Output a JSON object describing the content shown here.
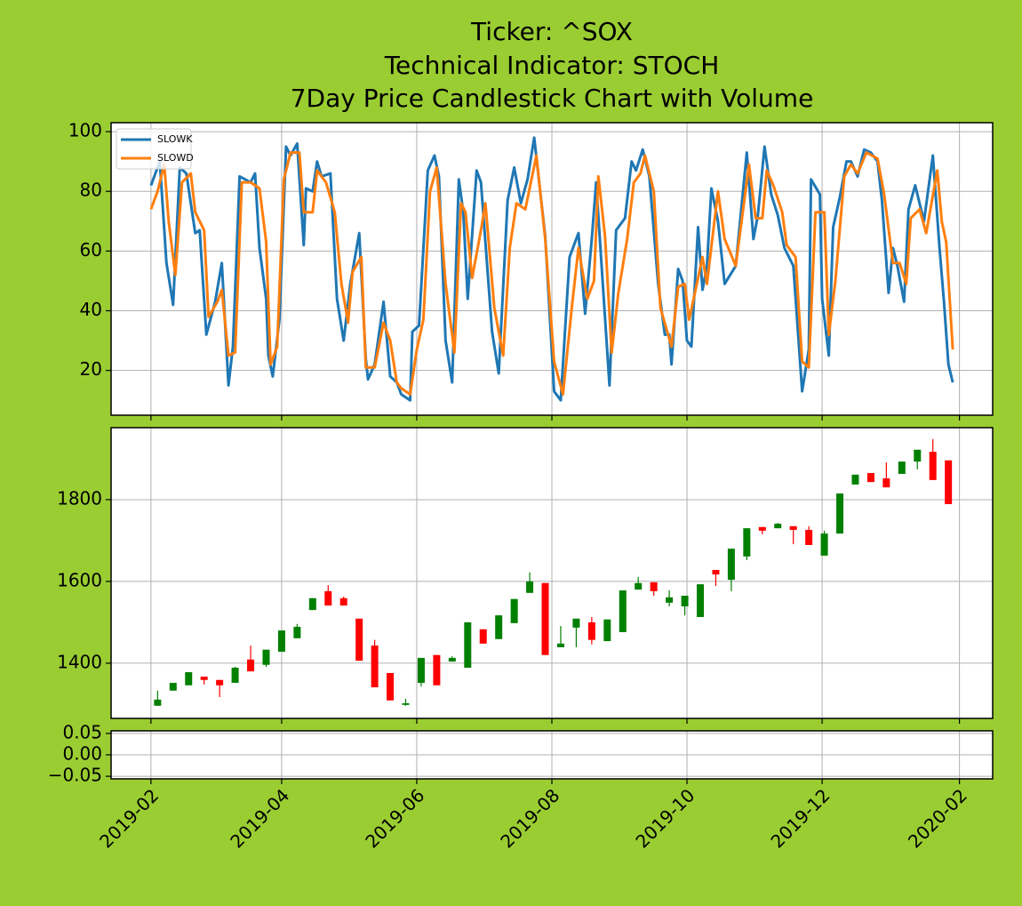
{
  "title": [
    "Ticker: ^SOX",
    "Technical Indicator: STOCH",
    "7Day Price Candlestick Chart with Volume"
  ],
  "chart_data": [
    {
      "type": "line",
      "ylim": [
        5,
        103
      ],
      "yticks": [
        20,
        40,
        60,
        80,
        100
      ],
      "grid": true,
      "legend": "upper left",
      "series": [
        {
          "name": "SLOWK",
          "color": "#1f77b4",
          "x": [
            "2019-02-01",
            "2019-02-05",
            "2019-02-08",
            "2019-02-11",
            "2019-02-14",
            "2019-02-17",
            "2019-02-21",
            "2019-02-23",
            "2019-02-26",
            "2019-03-02",
            "2019-03-05",
            "2019-03-08",
            "2019-03-10",
            "2019-03-13",
            "2019-03-18",
            "2019-03-20",
            "2019-03-22",
            "2019-03-25",
            "2019-03-26",
            "2019-03-28",
            "2019-03-31",
            "2019-04-03",
            "2019-04-05",
            "2019-04-08",
            "2019-04-11",
            "2019-04-12",
            "2019-04-15",
            "2019-04-17",
            "2019-04-19",
            "2019-04-23",
            "2019-04-26",
            "2019-04-29",
            "2019-05-02",
            "2019-05-06",
            "2019-05-09",
            "2019-05-10",
            "2019-05-13",
            "2019-05-17",
            "2019-05-20",
            "2019-05-23",
            "2019-05-25",
            "2019-05-29",
            "2019-05-30",
            "2019-06-02",
            "2019-06-06",
            "2019-06-09",
            "2019-06-11",
            "2019-06-14",
            "2019-06-17",
            "2019-06-20",
            "2019-06-22",
            "2019-06-24",
            "2019-06-28",
            "2019-06-30",
            "2019-07-05",
            "2019-07-08",
            "2019-07-12",
            "2019-07-15",
            "2019-07-18",
            "2019-07-21",
            "2019-07-24",
            "2019-07-29",
            "2019-08-02",
            "2019-08-05",
            "2019-08-09",
            "2019-08-13",
            "2019-08-16",
            "2019-08-19",
            "2019-08-21",
            "2019-08-24",
            "2019-08-27",
            "2019-08-30",
            "2019-09-03",
            "2019-09-06",
            "2019-09-08",
            "2019-09-11",
            "2019-09-14",
            "2019-09-18",
            "2019-09-21",
            "2019-09-23",
            "2019-09-24",
            "2019-09-27",
            "2019-09-29",
            "2019-10-01",
            "2019-10-03",
            "2019-10-06",
            "2019-10-08",
            "2019-10-10",
            "2019-10-12",
            "2019-10-15",
            "2019-10-18",
            "2019-10-23",
            "2019-10-28",
            "2019-10-31",
            "2019-11-02",
            "2019-11-05",
            "2019-11-08",
            "2019-11-11",
            "2019-11-14",
            "2019-11-18",
            "2019-11-22",
            "2019-11-25",
            "2019-11-26",
            "2019-11-30",
            "2019-12-01",
            "2019-12-04",
            "2019-12-06",
            "2019-12-09",
            "2019-12-12",
            "2019-12-14",
            "2019-12-17",
            "2019-12-20",
            "2019-12-23",
            "2019-12-26",
            "2019-12-28",
            "2019-12-31",
            "2020-01-02",
            "2020-01-04",
            "2020-01-07",
            "2020-01-09",
            "2020-01-12",
            "2020-01-16",
            "2020-01-20",
            "2020-01-23",
            "2020-01-25",
            "2020-01-27",
            "2020-01-29"
          ],
          "values": [
            82,
            90,
            56,
            42,
            88,
            86,
            66,
            67,
            32,
            43,
            56,
            15,
            28,
            85,
            83,
            86,
            61,
            44,
            25,
            18,
            37,
            95,
            92,
            96,
            62,
            81,
            80,
            90,
            85,
            86,
            44,
            30,
            49,
            66,
            24,
            17,
            22,
            43,
            18,
            16,
            12,
            10,
            33,
            35,
            87,
            92,
            85,
            30,
            16,
            84,
            73,
            44,
            87,
            83,
            33,
            19,
            77,
            88,
            76,
            84,
            98,
            65,
            13,
            10,
            58,
            66,
            39,
            64,
            83,
            49,
            15,
            67,
            71,
            90,
            87,
            94,
            85,
            49,
            32,
            32,
            22,
            54,
            50,
            30,
            28,
            68,
            47,
            55,
            81,
            70,
            49,
            55,
            93,
            64,
            72,
            95,
            79,
            72,
            61,
            55,
            13,
            27,
            84,
            79,
            44,
            25,
            68,
            78,
            90,
            90,
            85,
            94,
            93,
            90,
            77,
            46,
            61,
            55,
            43,
            74,
            82,
            70,
            92,
            61,
            43,
            22,
            16
          ]
        },
        {
          "name": "SLOWD",
          "color": "#ff7f0e",
          "x": [
            "2019-02-01",
            "2019-02-04",
            "2019-02-07",
            "2019-02-09",
            "2019-02-12",
            "2019-02-15",
            "2019-02-19",
            "2019-02-21",
            "2019-02-25",
            "2019-02-27",
            "2019-03-03",
            "2019-03-05",
            "2019-03-08",
            "2019-03-11",
            "2019-03-14",
            "2019-03-18",
            "2019-03-22",
            "2019-03-25",
            "2019-03-27",
            "2019-03-30",
            "2019-04-02",
            "2019-04-05",
            "2019-04-09",
            "2019-04-11",
            "2019-04-15",
            "2019-04-17",
            "2019-04-21",
            "2019-04-25",
            "2019-04-28",
            "2019-05-01",
            "2019-05-03",
            "2019-05-07",
            "2019-05-09",
            "2019-05-13",
            "2019-05-17",
            "2019-05-20",
            "2019-05-23",
            "2019-05-25",
            "2019-05-29",
            "2019-06-01",
            "2019-06-04",
            "2019-06-07",
            "2019-06-10",
            "2019-06-14",
            "2019-06-18",
            "2019-06-21",
            "2019-06-23",
            "2019-06-26",
            "2019-06-30",
            "2019-07-02",
            "2019-07-06",
            "2019-07-10",
            "2019-07-13",
            "2019-07-16",
            "2019-07-20",
            "2019-07-25",
            "2019-07-29",
            "2019-08-02",
            "2019-08-06",
            "2019-08-10",
            "2019-08-13",
            "2019-08-17",
            "2019-08-20",
            "2019-08-22",
            "2019-08-25",
            "2019-08-28",
            "2019-08-31",
            "2019-09-04",
            "2019-09-07",
            "2019-09-10",
            "2019-09-12",
            "2019-09-16",
            "2019-09-19",
            "2019-09-24",
            "2019-09-27",
            "2019-09-30",
            "2019-10-02",
            "2019-10-08",
            "2019-10-10",
            "2019-10-15",
            "2019-10-18",
            "2019-10-23",
            "2019-10-29",
            "2019-11-01",
            "2019-11-04",
            "2019-11-06",
            "2019-11-09",
            "2019-11-13",
            "2019-11-15",
            "2019-11-19",
            "2019-11-22",
            "2019-11-25",
            "2019-11-28",
            "2019-12-02",
            "2019-12-04",
            "2019-12-07",
            "2019-12-11",
            "2019-12-14",
            "2019-12-17",
            "2019-12-21",
            "2019-12-26",
            "2019-12-29",
            "2020-01-02",
            "2020-01-05",
            "2020-01-08",
            "2020-01-10",
            "2020-01-14",
            "2020-01-17",
            "2020-01-22",
            "2020-01-24",
            "2020-01-26",
            "2020-01-29"
          ],
          "values": [
            74,
            80,
            89,
            70,
            52,
            83,
            86,
            73,
            67,
            38,
            43,
            47,
            25,
            26,
            83,
            83,
            81,
            63,
            22,
            28,
            84,
            93,
            93,
            73,
            73,
            87,
            83,
            73,
            49,
            36,
            53,
            58,
            21,
            21,
            36,
            30,
            16,
            14,
            12,
            27,
            37,
            80,
            88,
            49,
            26,
            76,
            73,
            51,
            67,
            76,
            41,
            25,
            61,
            76,
            74,
            92,
            64,
            23,
            12,
            41,
            61,
            44,
            50,
            85,
            65,
            26,
            46,
            64,
            83,
            86,
            92,
            80,
            41,
            28,
            48,
            49,
            37,
            58,
            49,
            80,
            64,
            55,
            89,
            71,
            71,
            87,
            82,
            73,
            62,
            58,
            23,
            21,
            73,
            73,
            32,
            50,
            85,
            89,
            86,
            93,
            91,
            79,
            56,
            56,
            49,
            71,
            74,
            66,
            87,
            70,
            63,
            27
          ]
        }
      ]
    },
    {
      "type": "candlestick",
      "ylim": [
        1265,
        1976
      ],
      "yticks": [
        1400,
        1600,
        1800
      ],
      "grid": true,
      "up_color": "#008000",
      "down_color": "#ff0000",
      "x": [
        "2019-02-04",
        "2019-02-11",
        "2019-02-18",
        "2019-02-25",
        "2019-03-04",
        "2019-03-11",
        "2019-03-18",
        "2019-03-25",
        "2019-04-01",
        "2019-04-08",
        "2019-04-15",
        "2019-04-22",
        "2019-04-29",
        "2019-05-06",
        "2019-05-13",
        "2019-05-20",
        "2019-05-27",
        "2019-06-03",
        "2019-06-10",
        "2019-06-17",
        "2019-06-24",
        "2019-07-01",
        "2019-07-08",
        "2019-07-15",
        "2019-07-22",
        "2019-07-29",
        "2019-08-05",
        "2019-08-12",
        "2019-08-19",
        "2019-08-26",
        "2019-09-02",
        "2019-09-09",
        "2019-09-16",
        "2019-09-23",
        "2019-09-30",
        "2019-10-07",
        "2019-10-14",
        "2019-10-21",
        "2019-10-28",
        "2019-11-04",
        "2019-11-11",
        "2019-11-18",
        "2019-11-25",
        "2019-12-02",
        "2019-12-09",
        "2019-12-16",
        "2019-12-23",
        "2019-12-30",
        "2020-01-06",
        "2020-01-13",
        "2020-01-20",
        "2020-01-27"
      ],
      "open": [
        1296,
        1333,
        1346,
        1367,
        1359,
        1352,
        1409,
        1396,
        1428,
        1461,
        1530,
        1576,
        1559,
        1509,
        1443,
        1376,
        1298,
        1352,
        1420,
        1404,
        1389,
        1483,
        1459,
        1498,
        1572,
        1596,
        1439,
        1487,
        1500,
        1454,
        1476,
        1580,
        1598,
        1548,
        1539,
        1513,
        1628,
        1604,
        1661,
        1733,
        1730,
        1735,
        1726,
        1663,
        1717,
        1837,
        1865,
        1852,
        1863,
        1893,
        1917,
        1896
      ],
      "high": [
        1333,
        1352,
        1378,
        1367,
        1359,
        1391,
        1443,
        1433,
        1480,
        1496,
        1559,
        1591,
        1563,
        1509,
        1457,
        1376,
        1313,
        1413,
        1420,
        1417,
        1500,
        1483,
        1517,
        1557,
        1622,
        1596,
        1491,
        1509,
        1513,
        1507,
        1578,
        1611,
        1598,
        1578,
        1565,
        1593,
        1628,
        1680,
        1730,
        1733,
        1743,
        1735,
        1735,
        1724,
        1815,
        1861,
        1865,
        1891,
        1893,
        1922,
        1948,
        1896
      ],
      "low": [
        1296,
        1333,
        1346,
        1348,
        1317,
        1352,
        1380,
        1391,
        1428,
        1461,
        1530,
        1541,
        1541,
        1406,
        1341,
        1309,
        1296,
        1343,
        1346,
        1404,
        1389,
        1448,
        1459,
        1498,
        1572,
        1420,
        1439,
        1439,
        1446,
        1454,
        1476,
        1580,
        1565,
        1539,
        1517,
        1513,
        1589,
        1576,
        1652,
        1715,
        1730,
        1691,
        1689,
        1663,
        1717,
        1837,
        1843,
        1830,
        1863,
        1874,
        1848,
        1789
      ],
      "close": [
        1311,
        1352,
        1378,
        1359,
        1346,
        1389,
        1380,
        1433,
        1480,
        1489,
        1559,
        1541,
        1541,
        1406,
        1341,
        1309,
        1302,
        1413,
        1346,
        1413,
        1500,
        1448,
        1517,
        1557,
        1600,
        1420,
        1448,
        1509,
        1457,
        1507,
        1578,
        1596,
        1576,
        1561,
        1565,
        1593,
        1617,
        1680,
        1730,
        1724,
        1741,
        1726,
        1689,
        1717,
        1815,
        1861,
        1843,
        1830,
        1893,
        1922,
        1848,
        1789
      ]
    },
    {
      "type": "bar",
      "ylim": [
        -0.056,
        0.056
      ],
      "yticks": [
        0.05,
        {
          "value": 0,
          "label": "0.00"
        },
        {
          "value": -0.05,
          "label": "−0.05"
        }
      ],
      "grid": true,
      "xlim": [
        "2019-01-14",
        "2020-02-16"
      ],
      "xticks": [
        "2019-02",
        "2019-04",
        "2019-06",
        "2019-08",
        "2019-10",
        "2019-12",
        "2020-02"
      ]
    }
  ]
}
